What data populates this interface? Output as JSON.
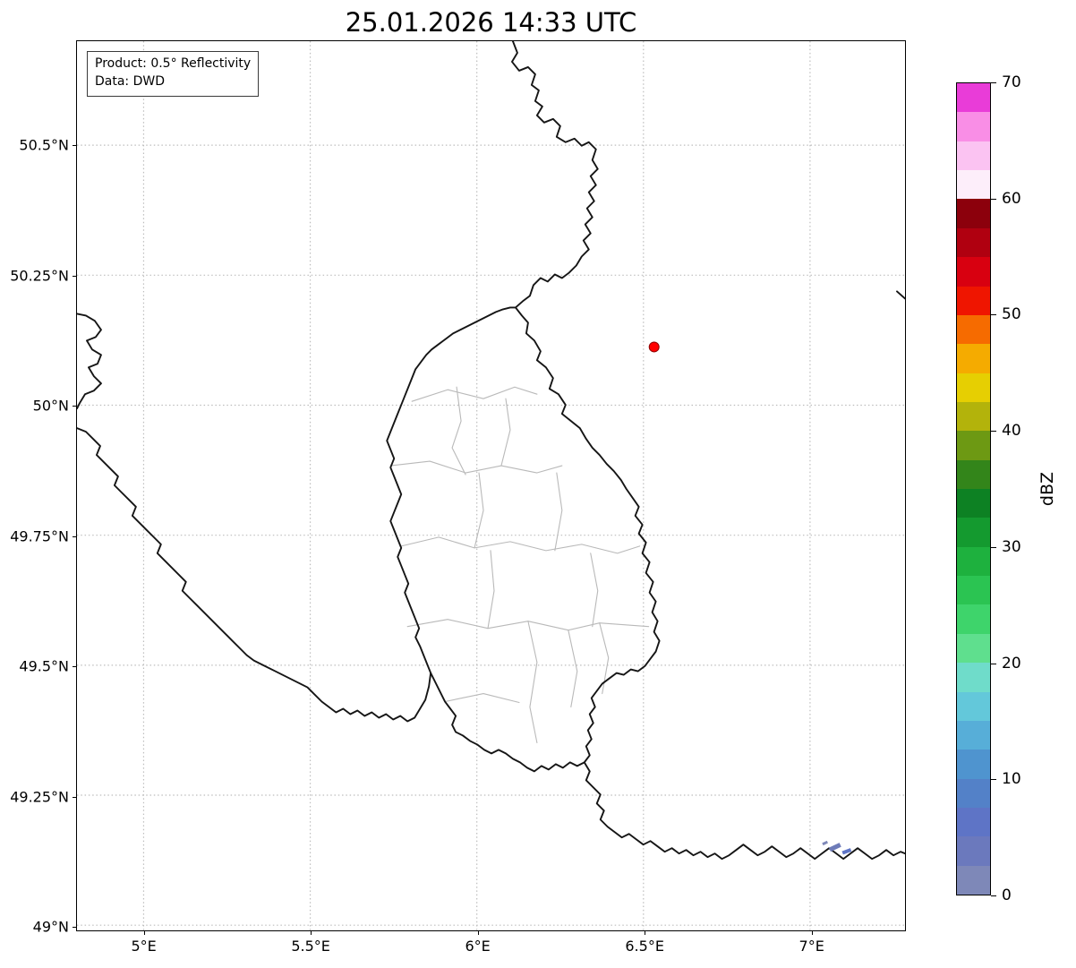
{
  "title": "25.01.2026 14:33 UTC",
  "info_box": {
    "line1": "Product: 0.5° Reflectivity",
    "line2": "Data: DWD"
  },
  "axes": {
    "lon_min": 4.8,
    "lon_max": 7.285,
    "lat_min": 48.99,
    "lat_max": 50.7,
    "x_ticks": [
      {
        "lon": 5.0,
        "label": "5°E"
      },
      {
        "lon": 5.5,
        "label": "5.5°E"
      },
      {
        "lon": 6.0,
        "label": "6°E"
      },
      {
        "lon": 6.5,
        "label": "6.5°E"
      },
      {
        "lon": 7.0,
        "label": "7°E"
      }
    ],
    "y_ticks": [
      {
        "lat": 50.5,
        "label": "50.5°N"
      },
      {
        "lat": 50.25,
        "label": "50.25°N"
      },
      {
        "lat": 50.0,
        "label": "50°N"
      },
      {
        "lat": 49.75,
        "label": "49.75°N"
      },
      {
        "lat": 49.5,
        "label": "49.5°N"
      },
      {
        "lat": 49.25,
        "label": "49.25°N"
      },
      {
        "lat": 49.0,
        "label": "49°N"
      }
    ]
  },
  "colorbar": {
    "label": "dBZ",
    "min": 0,
    "max": 70,
    "ticks": [
      0,
      10,
      20,
      30,
      40,
      50,
      60,
      70
    ],
    "colors": [
      "#7e88b8",
      "#6b79bd",
      "#5e74c6",
      "#5381c8",
      "#4f94cf",
      "#57aed8",
      "#63c8da",
      "#6fdcca",
      "#5fdf8e",
      "#3ed46b",
      "#2bc452",
      "#1eb13e",
      "#149a2f",
      "#0d8123",
      "#33851a",
      "#6d9913",
      "#b3b30b",
      "#e6cf02",
      "#f5ab00",
      "#f66b00",
      "#ef1500",
      "#d80010",
      "#b00010",
      "#8c000c",
      "#fdeefa",
      "#fbc3f2",
      "#f98ee6",
      "#e93cd8"
    ]
  },
  "marker": {
    "label": "radar-site",
    "lon": 6.532,
    "lat": 50.112,
    "color": "#ff0000",
    "edge_color": "#8b0000",
    "radius": 5.5
  },
  "echoes": [
    {
      "lon": 7.075,
      "lat": 49.15,
      "w": 13,
      "h": 5,
      "rot": -25,
      "color": "#6e7bb8"
    },
    {
      "lon": 7.11,
      "lat": 49.142,
      "w": 10,
      "h": 4,
      "rot": -20,
      "color": "#5e74c6"
    },
    {
      "lon": 7.045,
      "lat": 49.158,
      "w": 6,
      "h": 3,
      "rot": -25,
      "color": "#7e88b8"
    }
  ],
  "style": {
    "grid_color": "#bdbdbd",
    "border_color": "#151515",
    "canton_color": "#b9b9b9",
    "frame_color": "#000000"
  },
  "chart_data": {
    "type": "map",
    "title": "25.01.2026 14:33 UTC",
    "x_axis": {
      "tick_labels": [
        "5°E",
        "5.5°E",
        "6°E",
        "6.5°E",
        "7°E"
      ],
      "range_deg_east": [
        4.8,
        7.285
      ]
    },
    "y_axis": {
      "tick_labels": [
        "49°N",
        "49.25°N",
        "49.5°N",
        "49.75°N",
        "50°N",
        "50.25°N",
        "50.5°N"
      ],
      "range_deg_north": [
        48.99,
        50.7
      ]
    },
    "colorbar": {
      "label": "dBZ",
      "range": [
        0,
        70
      ],
      "ticks": [
        0,
        10,
        20,
        30,
        40,
        50,
        60,
        70
      ],
      "legend_position": "right"
    },
    "grid": "dotted lat/lon graticule",
    "annotations": [
      "red radar-site marker near 6.53°E, 50.11°N",
      "small low-reflectivity (≈0–7 dBZ) echoes near 7.1°E, 49.15°N",
      "country borders (Luxembourg, Belgium, Germany, France) in black; Luxembourg canton borders in gray"
    ]
  }
}
